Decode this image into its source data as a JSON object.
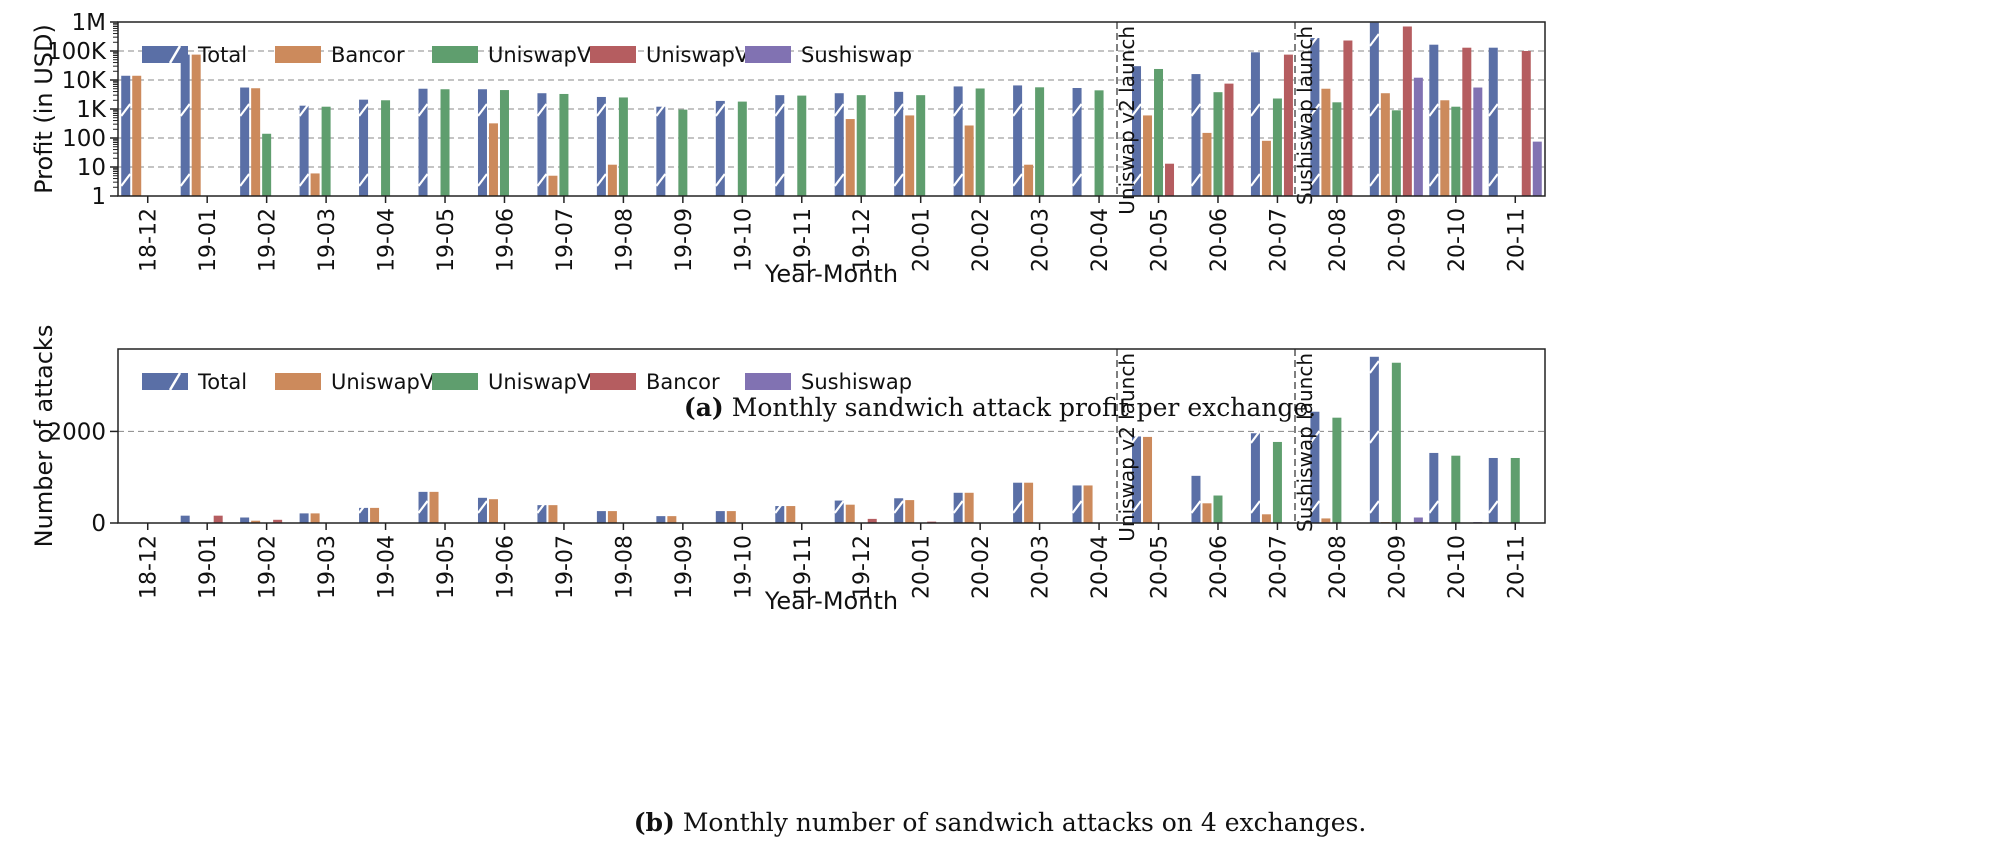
{
  "colors": {
    "total": "#5a6fa6",
    "bancor_a": "#cc8a5c",
    "uniswapv1_a": "#5f9e6e",
    "uniswapv2_a": "#b55d60",
    "sushiswap": "#8172b2",
    "uniswapv1_b": "#cc8a5c",
    "uniswapv2_b": "#5f9e6e",
    "bancor_b": "#b55d60"
  },
  "captions": {
    "a_label": "(a)",
    "a_text": "Monthly sandwich attack profit per exchange.",
    "b_label": "(b)",
    "b_text": "Monthly number of sandwich attacks on 4 exchanges."
  },
  "chart_data": [
    {
      "type": "bar",
      "xlabel": "Year-Month",
      "ylabel": "Profit (in USD)",
      "yscale": "log",
      "ylim": [
        1,
        1000000
      ],
      "yticks": [
        1,
        10,
        100,
        1000,
        10000,
        100000,
        1000000
      ],
      "ytick_labels": [
        "1",
        "10",
        "100",
        "1K",
        "10K",
        "100K",
        "1M"
      ],
      "grid": "horizontal dashed",
      "legend_position": "top-left",
      "categories": [
        "18-12",
        "19-01",
        "19-02",
        "19-03",
        "19-04",
        "19-05",
        "19-06",
        "19-07",
        "19-08",
        "19-09",
        "19-10",
        "19-11",
        "19-12",
        "20-01",
        "20-02",
        "20-03",
        "20-04",
        "20-05",
        "20-06",
        "20-07",
        "20-08",
        "20-09",
        "20-10",
        "20-11"
      ],
      "annotations": [
        {
          "text": "Uniswap v2 launch",
          "between": [
            "20-04",
            "20-05"
          ]
        },
        {
          "text": "Sushiswap launch",
          "between": [
            "20-07",
            "20-08"
          ]
        }
      ],
      "series": [
        {
          "name": "Total",
          "color_key": "total",
          "hatch": true,
          "values": [
            14000,
            75000,
            5500,
            1300,
            2100,
            5000,
            4800,
            3500,
            2600,
            1200,
            1900,
            3000,
            3500,
            3900,
            6000,
            6500,
            5300,
            30000,
            16000,
            90000,
            280000,
            950000,
            165000,
            130000
          ]
        },
        {
          "name": "Bancor",
          "color_key": "bancor_a",
          "values": [
            14000,
            75000,
            5200,
            6,
            null,
            null,
            320,
            5,
            12,
            null,
            null,
            null,
            450,
            600,
            270,
            12,
            null,
            600,
            150,
            80,
            5000,
            3500,
            2000,
            null
          ]
        },
        {
          "name": "UniswapV1",
          "color_key": "uniswapv1_a",
          "values": [
            null,
            null,
            140,
            1200,
            2000,
            4800,
            4500,
            3300,
            2500,
            950,
            1800,
            2900,
            3000,
            3000,
            5100,
            5600,
            4400,
            24000,
            3800,
            2300,
            1700,
            900,
            1200,
            null
          ]
        },
        {
          "name": "UniswapV2",
          "color_key": "uniswapv2_a",
          "values": [
            null,
            null,
            null,
            null,
            null,
            null,
            null,
            null,
            null,
            null,
            null,
            null,
            null,
            null,
            null,
            null,
            null,
            13,
            7500,
            75000,
            230000,
            700000,
            130000,
            100000
          ]
        },
        {
          "name": "Sushiswap",
          "color_key": "sushiswap",
          "values": [
            null,
            null,
            null,
            null,
            null,
            null,
            null,
            null,
            null,
            null,
            null,
            null,
            null,
            null,
            null,
            null,
            null,
            null,
            null,
            null,
            null,
            12000,
            5500,
            75
          ]
        }
      ]
    },
    {
      "type": "bar",
      "xlabel": "Year-Month",
      "ylabel": "Number of attacks",
      "ylim": [
        0,
        3800
      ],
      "yticks": [
        0,
        2000
      ],
      "ytick_labels": [
        "0",
        "2000"
      ],
      "grid": "horizontal dashed",
      "legend_position": "top-left",
      "categories": [
        "18-12",
        "19-01",
        "19-02",
        "19-03",
        "19-04",
        "19-05",
        "19-06",
        "19-07",
        "19-08",
        "19-09",
        "19-10",
        "19-11",
        "19-12",
        "20-01",
        "20-02",
        "20-03",
        "20-04",
        "20-05",
        "20-06",
        "20-07",
        "20-08",
        "20-09",
        "20-10",
        "20-11"
      ],
      "annotations": [
        {
          "text": "Uniswap v2 launch",
          "between": [
            "20-04",
            "20-05"
          ]
        },
        {
          "text": "Sushiswap launch",
          "between": [
            "20-07",
            "20-08"
          ]
        }
      ],
      "series": [
        {
          "name": "Total",
          "color_key": "total",
          "hatch": true,
          "values": [
            5,
            160,
            120,
            210,
            330,
            680,
            550,
            390,
            260,
            150,
            260,
            370,
            490,
            540,
            660,
            880,
            820,
            1890,
            1030,
            1960,
            2430,
            3630,
            1530,
            1420
          ]
        },
        {
          "name": "UniswapV1",
          "color_key": "uniswapv1_b",
          "values": [
            5,
            10,
            50,
            210,
            330,
            680,
            520,
            390,
            260,
            150,
            260,
            370,
            400,
            500,
            660,
            880,
            820,
            1880,
            430,
            190,
            100,
            20,
            10,
            10
          ]
        },
        {
          "name": "UniswapV2",
          "color_key": "uniswapv2_b",
          "values": [
            null,
            null,
            null,
            null,
            null,
            null,
            null,
            null,
            null,
            null,
            null,
            null,
            null,
            null,
            null,
            null,
            null,
            null,
            600,
            1770,
            2300,
            3500,
            1470,
            1420
          ]
        },
        {
          "name": "Bancor",
          "color_key": "bancor_b",
          "values": [
            null,
            160,
            70,
            null,
            null,
            null,
            10,
            null,
            null,
            null,
            null,
            null,
            90,
            30,
            10,
            5,
            null,
            5,
            5,
            5,
            10,
            10,
            10,
            null
          ]
        },
        {
          "name": "Sushiswap",
          "color_key": "sushiswap",
          "values": [
            null,
            null,
            null,
            null,
            null,
            null,
            null,
            null,
            null,
            null,
            null,
            null,
            null,
            null,
            null,
            null,
            null,
            null,
            null,
            null,
            null,
            120,
            20,
            null
          ]
        }
      ]
    }
  ]
}
